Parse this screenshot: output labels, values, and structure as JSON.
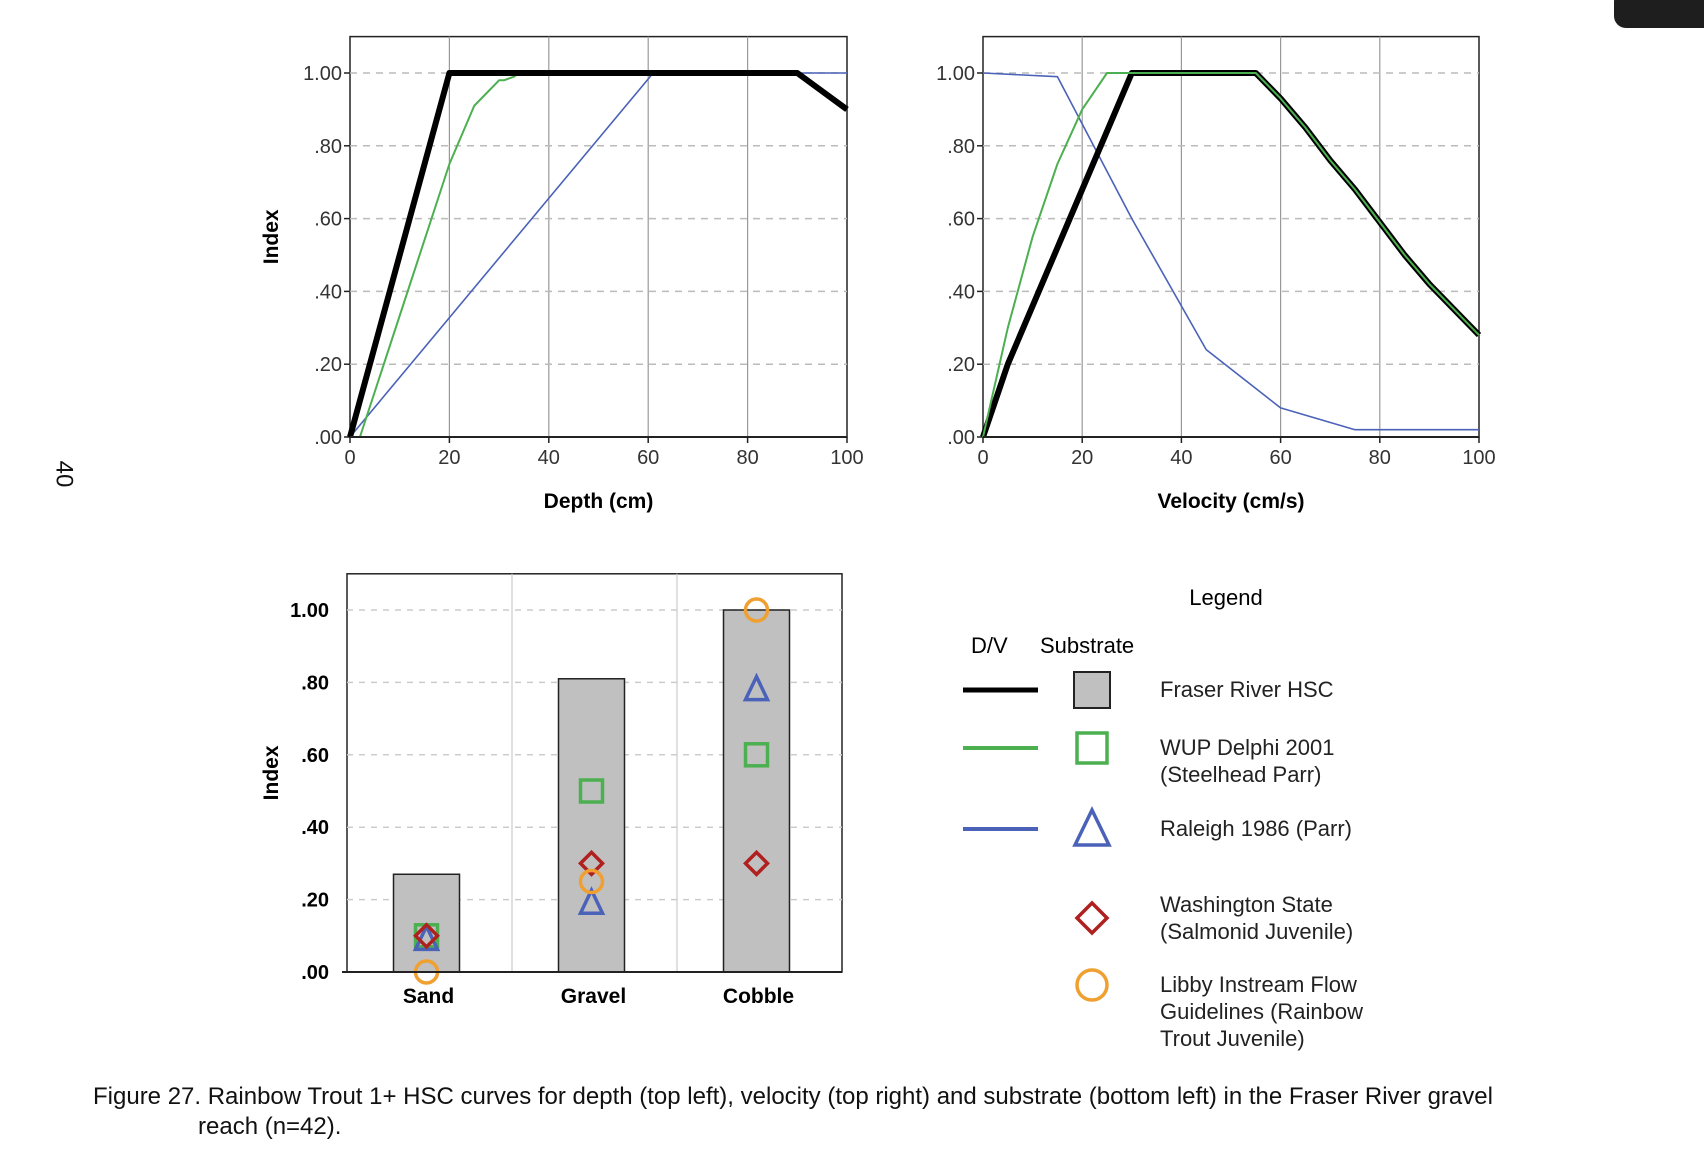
{
  "page_number": "40",
  "caption": {
    "line1": "Figure 27. Rainbow Trout 1+ HSC curves for depth (top left), velocity (top right) and substrate (bottom left) in the Fraser River gravel",
    "line2": "reach (n=42)."
  },
  "colors": {
    "fraser": "#000000",
    "wup": "#4caf50",
    "raleigh": "#4a62b8",
    "washington": "#b0201f",
    "libby": "#f0a030",
    "bar_fill": "#c0c0c0"
  },
  "chart_data": [
    {
      "type": "line",
      "xlabel": "Depth (cm)",
      "ylabel": "Index",
      "xlim": [
        0,
        100
      ],
      "ylim": [
        0,
        1.1
      ],
      "xticks": [
        "0",
        "20",
        "40",
        "60",
        "80",
        "100"
      ],
      "yticks": [
        ".00",
        ".20",
        ".40",
        ".60",
        ".80",
        "1.00"
      ],
      "grid": "vertical solid, horizontal dashed",
      "series": [
        {
          "key": "raleigh",
          "points": [
            [
              0,
              0
            ],
            [
              61,
              1
            ],
            [
              100,
              1
            ]
          ]
        },
        {
          "key": "wup",
          "points": [
            [
              2,
              0
            ],
            [
              20,
              0.75
            ],
            [
              25,
              0.91
            ],
            [
              30,
              0.98
            ],
            [
              31,
              0.98
            ],
            [
              33,
              0.99
            ],
            [
              34,
              1
            ],
            [
              90,
              1
            ]
          ]
        },
        {
          "key": "fraser",
          "points": [
            [
              0,
              0
            ],
            [
              20,
              1
            ],
            [
              90,
              1
            ],
            [
              100,
              0.9
            ]
          ]
        }
      ]
    },
    {
      "type": "line",
      "xlabel": "Velocity (cm/s)",
      "ylabel": "",
      "xlim": [
        0,
        100
      ],
      "ylim": [
        0,
        1.1
      ],
      "xticks": [
        "0",
        "20",
        "40",
        "60",
        "80",
        "100"
      ],
      "yticks": [
        ".00",
        ".20",
        ".40",
        ".60",
        ".80",
        "1.00"
      ],
      "grid": "vertical solid, horizontal dashed",
      "series": [
        {
          "key": "raleigh",
          "points": [
            [
              0,
              1
            ],
            [
              15,
              0.99
            ],
            [
              30,
              0.6
            ],
            [
              45,
              0.24
            ],
            [
              60,
              0.08
            ],
            [
              75,
              0.02
            ],
            [
              100,
              0.02
            ]
          ]
        },
        {
          "key": "fraser",
          "points": [
            [
              0,
              0
            ],
            [
              5,
              0.2
            ],
            [
              30,
              1
            ],
            [
              55,
              1
            ],
            [
              60,
              0.93
            ],
            [
              65,
              0.85
            ],
            [
              70,
              0.76
            ],
            [
              75,
              0.68
            ],
            [
              80,
              0.59
            ],
            [
              85,
              0.5
            ],
            [
              90,
              0.42
            ],
            [
              100,
              0.28
            ]
          ]
        },
        {
          "key": "wup",
          "points": [
            [
              0,
              0
            ],
            [
              5,
              0.3
            ],
            [
              10,
              0.55
            ],
            [
              15,
              0.75
            ],
            [
              20,
              0.9
            ],
            [
              25,
              1
            ],
            [
              55,
              1
            ],
            [
              60,
              0.93
            ],
            [
              65,
              0.85
            ],
            [
              70,
              0.76
            ],
            [
              75,
              0.68
            ],
            [
              80,
              0.59
            ],
            [
              85,
              0.5
            ],
            [
              90,
              0.42
            ],
            [
              100,
              0.28
            ]
          ]
        }
      ]
    },
    {
      "type": "bar",
      "ylabel": "Index",
      "ylim": [
        0,
        1.1
      ],
      "categories": [
        "Sand",
        "Gravel",
        "Cobble"
      ],
      "yticks": [
        ".00",
        ".20",
        ".40",
        ".60",
        ".80",
        "1.00"
      ],
      "bars": {
        "key": "fraser",
        "values": [
          0.27,
          0.81,
          1.0
        ]
      },
      "markers": [
        {
          "key": "wup",
          "shape": "square",
          "values": [
            0.1,
            0.5,
            0.6
          ]
        },
        {
          "key": "raleigh",
          "shape": "triangle",
          "values": [
            0.09,
            0.19,
            0.78
          ]
        },
        {
          "key": "washington",
          "shape": "diamond",
          "values": [
            0.1,
            0.3,
            0.3
          ]
        },
        {
          "key": "libby",
          "shape": "circle",
          "values": [
            0.0,
            0.25,
            1.0
          ]
        }
      ]
    }
  ],
  "legend": {
    "title": "Legend",
    "col_dv": "D/V",
    "col_substrate": "Substrate",
    "items": [
      {
        "key": "fraser",
        "shape": "bar",
        "has_line": true,
        "lines": [
          "Fraser River HSC"
        ]
      },
      {
        "key": "wup",
        "shape": "square",
        "has_line": true,
        "lines": [
          "WUP    Delphi    2001",
          "(Steelhead Parr)"
        ]
      },
      {
        "key": "raleigh",
        "shape": "triangle",
        "has_line": true,
        "lines": [
          "Raleigh 1986 (Parr)"
        ]
      },
      {
        "key": "washington",
        "shape": "diamond",
        "has_line": false,
        "lines": [
          "Washington State",
          "(Salmonid Juvenile)"
        ]
      },
      {
        "key": "libby",
        "shape": "circle",
        "has_line": false,
        "lines": [
          "Libby Instream Flow",
          "Guidelines (Rainbow",
          "Trout Juvenile)"
        ]
      }
    ]
  }
}
